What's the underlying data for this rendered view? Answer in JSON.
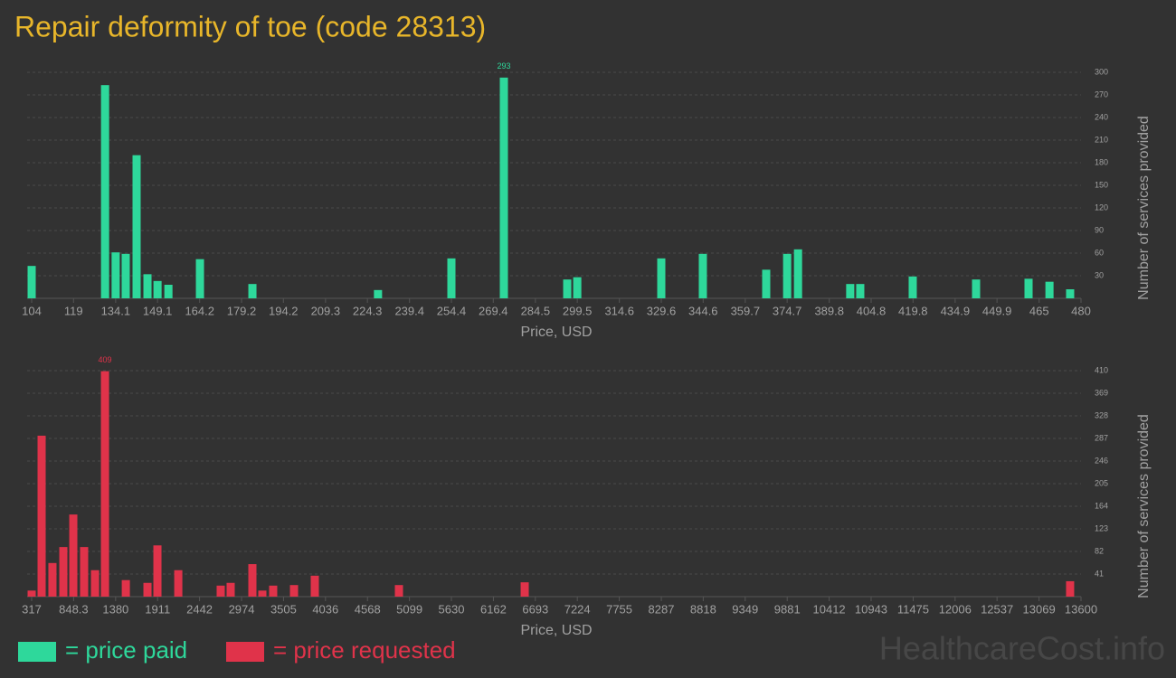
{
  "title": "Repair deformity of toe (code 28313)",
  "watermark": "HealthcareCost.info",
  "chart_data": [
    {
      "type": "bar",
      "xlabel": "Price, USD",
      "ylabel": "Number of services provided",
      "grid": true,
      "x": [
        104,
        130.3,
        134.1,
        137.7,
        141.6,
        145.5,
        149.1,
        153,
        164.3,
        183.1,
        228.1,
        254.4,
        273.2,
        295.9,
        299.5,
        329.6,
        344.5,
        367.2,
        374.7,
        378.6,
        397.3,
        400.9,
        419.7,
        442.4,
        461.2,
        468.7,
        476.1
      ],
      "series": [
        {
          "name": "= price paid",
          "color": "#2ed89b",
          "values": [
            43,
            283,
            61,
            59,
            190,
            32,
            23,
            18,
            52,
            19,
            11,
            53,
            293,
            25,
            28,
            53,
            59,
            38,
            59,
            65,
            19,
            19,
            29,
            25,
            26,
            22,
            12
          ]
        }
      ],
      "xlim": [
        104,
        480
      ],
      "xticks": [
        104,
        119,
        134.1,
        149.1,
        164.2,
        179.2,
        194.2,
        209.3,
        224.3,
        239.4,
        254.4,
        269.4,
        284.5,
        299.5,
        314.6,
        329.6,
        344.6,
        359.7,
        374.7,
        389.8,
        404.8,
        419.8,
        434.9,
        449.9,
        465,
        480
      ],
      "ylim": [
        0,
        300
      ],
      "yticks": [
        30,
        60,
        90,
        120,
        150,
        180,
        210,
        240,
        270,
        300
      ]
    },
    {
      "type": "bar",
      "xlabel": "Price, USD",
      "ylabel": "Number of services provided",
      "grid": true,
      "x": [
        317,
        443,
        580,
        718,
        844,
        981,
        1119,
        1245,
        1509,
        1783,
        1909,
        2173,
        2710,
        2836,
        3111,
        3237,
        3374,
        3638,
        3901,
        4966,
        6558,
        13462
      ],
      "series": [
        {
          "name": "= price requested",
          "color": "#e0334a",
          "values": [
            11,
            292,
            61,
            90,
            149,
            90,
            48,
            409,
            30,
            25,
            93,
            48,
            20,
            25,
            59,
            11,
            20,
            21,
            38,
            21,
            26,
            28
          ]
        }
      ],
      "xlim": [
        317,
        13600
      ],
      "xticks": [
        317,
        848.3,
        1380,
        1911,
        2442,
        2974,
        3505,
        4036,
        4568,
        5099,
        5630,
        6162,
        6693,
        7224,
        7755,
        8287,
        8818,
        9349,
        9881,
        10412,
        10943,
        11475,
        12006,
        12537,
        13069,
        13600
      ],
      "ylim": [
        0,
        410
      ],
      "yticks": [
        41,
        82,
        123,
        164,
        205,
        246,
        287,
        328,
        369,
        410
      ]
    }
  ]
}
